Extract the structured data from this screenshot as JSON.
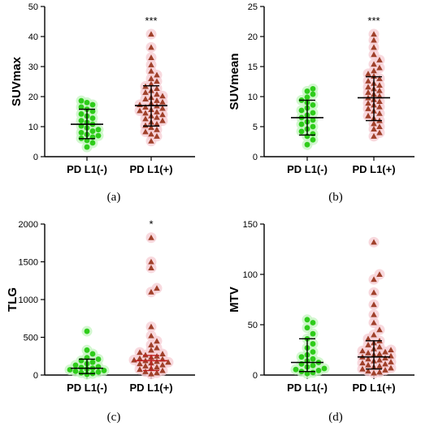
{
  "figure": {
    "panels": [
      "(a)",
      "(b)",
      "(c)",
      "(d)"
    ]
  },
  "chart_data": [
    {
      "type": "scatter",
      "panel": "(a)",
      "ylabel": "SUVmax",
      "xlabel": "",
      "categories": [
        "PD L1(-)",
        "PD L1(+)"
      ],
      "ylim": [
        0,
        50
      ],
      "yticks": [
        "0",
        "10",
        "20",
        "30",
        "40",
        "50"
      ],
      "significance": "***",
      "series": [
        {
          "name": "PD L1(-)",
          "color": "#2ecc1a",
          "marker": "circle",
          "values": [
            3.2,
            4.6,
            5.4,
            6.1,
            6.5,
            7.0,
            7.4,
            8.0,
            8.5,
            9.0,
            9.6,
            10.2,
            10.8,
            11.4,
            12.0,
            12.8,
            13.5,
            14.2,
            15.1,
            15.8,
            16.5,
            17.3,
            18.0,
            18.6
          ],
          "median": 10.8,
          "q1": 6.0,
          "q3": 15.8
        },
        {
          "name": "PD L1(+)",
          "color": "#a0402a",
          "marker": "triangle",
          "values": [
            5.2,
            6.8,
            7.5,
            8.3,
            9.0,
            9.7,
            10.4,
            10.9,
            11.5,
            12.0,
            12.6,
            13.1,
            13.6,
            14.0,
            14.5,
            14.9,
            15.3,
            15.7,
            16.1,
            16.5,
            16.9,
            17.3,
            17.8,
            18.2,
            18.7,
            19.2,
            19.7,
            20.2,
            20.8,
            21.4,
            22.0,
            22.7,
            23.4,
            24.2,
            25.1,
            26.0,
            27.2,
            28.5,
            30.6,
            33.0,
            36.4,
            40.8
          ],
          "median": 17.0,
          "q1": 10.2,
          "q3": 23.6
        }
      ]
    },
    {
      "type": "scatter",
      "panel": "(b)",
      "ylabel": "SUVmean",
      "xlabel": "",
      "categories": [
        "PD L1(-)",
        "PD L1(+)"
      ],
      "ylim": [
        0,
        25
      ],
      "yticks": [
        "0",
        "5",
        "10",
        "15",
        "20",
        "25"
      ],
      "significance": "***",
      "series": [
        {
          "name": "PD L1(-)",
          "color": "#2ecc1a",
          "marker": "circle",
          "values": [
            2.0,
            2.8,
            3.4,
            3.8,
            4.2,
            4.6,
            5.0,
            5.4,
            5.8,
            6.1,
            6.5,
            6.9,
            7.3,
            7.7,
            8.1,
            8.6,
            9.0,
            9.4,
            9.9,
            10.4,
            10.9,
            11.3
          ],
          "median": 6.5,
          "q1": 3.6,
          "q3": 9.4
        },
        {
          "name": "PD L1(+)",
          "color": "#a0402a",
          "marker": "triangle",
          "values": [
            3.4,
            4.0,
            4.6,
            5.0,
            5.5,
            6.0,
            6.4,
            6.8,
            7.2,
            7.6,
            8.0,
            8.3,
            8.6,
            8.9,
            9.2,
            9.5,
            9.8,
            10.1,
            10.4,
            10.7,
            11.0,
            11.3,
            11.6,
            11.9,
            12.2,
            12.6,
            13.0,
            13.4,
            13.8,
            14.3,
            14.8,
            15.4,
            16.1,
            17.0,
            18.2,
            19.4,
            20.4
          ],
          "median": 9.8,
          "q1": 6.0,
          "q3": 13.3
        }
      ]
    },
    {
      "type": "scatter",
      "panel": "(c)",
      "ylabel": "TLG",
      "xlabel": "",
      "categories": [
        "PD L1(-)",
        "PD L1(+)"
      ],
      "ylim": [
        0,
        2000
      ],
      "yticks": [
        "0",
        "500",
        "1000",
        "1500",
        "2000"
      ],
      "significance": "*",
      "series": [
        {
          "name": "PD L1(-)",
          "color": "#2ecc1a",
          "marker": "circle",
          "values": [
            10,
            20,
            30,
            40,
            50,
            60,
            70,
            80,
            90,
            100,
            110,
            130,
            150,
            170,
            190,
            210,
            230,
            280,
            330,
            580
          ],
          "median": 90,
          "q1": 20,
          "q3": 210
        },
        {
          "name": "PD L1(+)",
          "color": "#a0402a",
          "marker": "triangle",
          "values": [
            15,
            30,
            45,
            60,
            75,
            90,
            105,
            120,
            135,
            150,
            160,
            170,
            180,
            190,
            200,
            210,
            220,
            235,
            250,
            265,
            280,
            300,
            330,
            360,
            400,
            450,
            520,
            640,
            1100,
            1150,
            1420,
            1500,
            1820
          ],
          "median": 190,
          "q1": 60,
          "q3": 260
        }
      ]
    },
    {
      "type": "scatter",
      "panel": "(d)",
      "ylabel": "MTV",
      "xlabel": "",
      "categories": [
        "PD L1(-)",
        "PD L1(+)"
      ],
      "ylim": [
        0,
        150
      ],
      "yticks": [
        "0",
        "50",
        "100",
        "150"
      ],
      "significance": "",
      "series": [
        {
          "name": "PD L1(-)",
          "color": "#2ecc1a",
          "marker": "circle",
          "values": [
            1.5,
            2.5,
            3.5,
            4.5,
            5.5,
            6.5,
            8,
            9.5,
            11,
            12.5,
            14,
            16,
            18,
            20,
            23,
            27,
            31,
            36,
            41,
            47,
            52,
            55
          ],
          "median": 12.5,
          "q1": 3.5,
          "q3": 36
        },
        {
          "name": "PD L1(+)",
          "color": "#a0402a",
          "marker": "triangle",
          "values": [
            2,
            3,
            4,
            5,
            6,
            7,
            8,
            9,
            10,
            11,
            12,
            13,
            14,
            15,
            16,
            17,
            18,
            19,
            20,
            21,
            22,
            23,
            24,
            25,
            26,
            28,
            30,
            32,
            34,
            36,
            40,
            45,
            52,
            60,
            70,
            82,
            95,
            100,
            132
          ],
          "median": 18,
          "q1": 6,
          "q3": 34
        }
      ]
    }
  ]
}
